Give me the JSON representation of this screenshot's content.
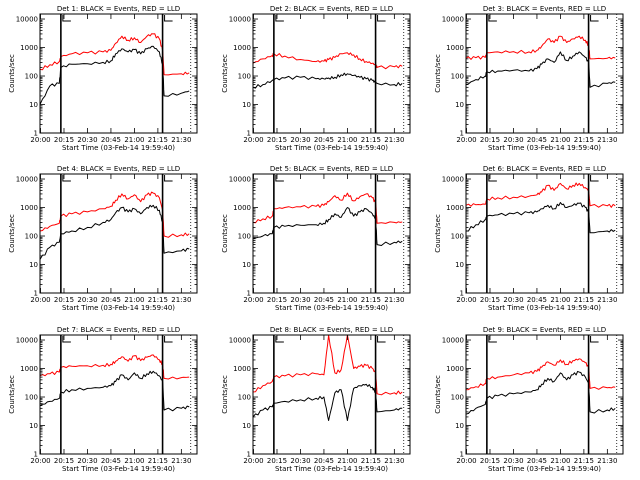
{
  "figure": {
    "x_axis_title": "Start Time (03-Feb-14 19:59:40)",
    "y_axis_title": "Counts/sec",
    "colors": {
      "events": "#000000",
      "lld": "#ff0000"
    },
    "x_tick_labels": [
      "20:00",
      "20:15",
      "20:30",
      "20:45",
      "21:00",
      "21:15",
      "21:30"
    ],
    "y_tick_labels": [
      "1",
      "10",
      "100",
      "1000",
      "10000"
    ]
  },
  "chart_data": [
    {
      "type": "line",
      "title": "Det 1: BLACK = Events, RED = LLD",
      "xlim": [
        "19:59:40",
        "21:40"
      ],
      "ylim": [
        1,
        15000
      ],
      "yscale": "log",
      "x_tick_labels": [
        "20:00",
        "20:15",
        "20:30",
        "20:45",
        "21:00",
        "21:15",
        "21:30"
      ],
      "markers_solid": [
        "20:13",
        "21:18"
      ],
      "markers_dotted": [
        "21:36"
      ],
      "x": [
        "19:59:40",
        "20:06",
        "20:12",
        "20:13",
        "20:20",
        "20:30",
        "20:40",
        "20:45",
        "20:48",
        "20:52",
        "20:56",
        "21:00",
        "21:04",
        "21:08",
        "21:12",
        "21:16",
        "21:18",
        "21:19",
        "21:30",
        "21:35"
      ],
      "series": [
        {
          "name": "BLACK = Events",
          "color": "#000000",
          "values": [
            10,
            45,
            55,
            200,
            260,
            270,
            300,
            340,
            600,
            900,
            700,
            850,
            600,
            900,
            1100,
            700,
            250,
            20,
            25,
            30
          ]
        },
        {
          "name": "RED = LLD",
          "color": "#ff0000",
          "values": [
            170,
            250,
            320,
            480,
            600,
            650,
            700,
            800,
            1400,
            2500,
            1800,
            2200,
            1500,
            2500,
            3000,
            2000,
            800,
            110,
            120,
            130
          ]
        }
      ]
    },
    {
      "type": "line",
      "title": "Det 2: BLACK = Events, RED = LLD",
      "xlim": [
        "19:59:40",
        "21:40"
      ],
      "ylim": [
        1,
        15000
      ],
      "yscale": "log",
      "x_tick_labels": [
        "20:00",
        "20:15",
        "20:30",
        "20:45",
        "21:00",
        "21:15",
        "21:30"
      ],
      "markers_solid": [
        "20:13",
        "21:18"
      ],
      "markers_dotted": [
        "21:36"
      ],
      "x": [
        "19:59:40",
        "20:06",
        "20:12",
        "20:13",
        "20:20",
        "20:30",
        "20:40",
        "20:45",
        "20:48",
        "20:52",
        "20:56",
        "21:00",
        "21:04",
        "21:08",
        "21:12",
        "21:16",
        "21:18",
        "21:19",
        "21:30",
        "21:35"
      ],
      "series": [
        {
          "name": "BLACK = Events",
          "color": "#000000",
          "values": [
            40,
            50,
            70,
            75,
            85,
            90,
            80,
            80,
            85,
            90,
            110,
            120,
            105,
            90,
            80,
            70,
            60,
            55,
            50,
            55
          ]
        },
        {
          "name": "RED = LLD",
          "color": "#ff0000",
          "values": [
            280,
            400,
            520,
            600,
            500,
            380,
            320,
            330,
            380,
            450,
            600,
            650,
            550,
            400,
            320,
            280,
            240,
            200,
            210,
            220
          ]
        }
      ]
    },
    {
      "type": "line",
      "title": "Det 3: BLACK = Events, RED = LLD",
      "xlim": [
        "19:59:40",
        "21:40"
      ],
      "ylim": [
        1,
        15000
      ],
      "yscale": "log",
      "x_tick_labels": [
        "20:00",
        "20:15",
        "20:30",
        "20:45",
        "21:00",
        "21:15",
        "21:30"
      ],
      "markers_solid": [
        "20:13",
        "21:18"
      ],
      "markers_dotted": [
        "21:36"
      ],
      "x": [
        "19:59:40",
        "20:06",
        "20:12",
        "20:13",
        "20:20",
        "20:30",
        "20:40",
        "20:45",
        "20:48",
        "20:52",
        "20:56",
        "21:00",
        "21:04",
        "21:08",
        "21:12",
        "21:16",
        "21:18",
        "21:19",
        "21:30",
        "21:35"
      ],
      "series": [
        {
          "name": "BLACK = Events",
          "color": "#000000",
          "values": [
            50,
            75,
            100,
            140,
            150,
            160,
            150,
            180,
            260,
            400,
            300,
            700,
            350,
            500,
            700,
            450,
            300,
            40,
            55,
            60
          ]
        },
        {
          "name": "RED = LLD",
          "color": "#ff0000",
          "values": [
            420,
            440,
            450,
            650,
            700,
            720,
            700,
            800,
            1100,
            2000,
            1500,
            2500,
            1500,
            2000,
            2500,
            1800,
            1200,
            400,
            420,
            430
          ]
        }
      ]
    },
    {
      "type": "line",
      "title": "Det 4: BLACK = Events, RED = LLD",
      "xlim": [
        "19:59:40",
        "21:40"
      ],
      "ylim": [
        1,
        15000
      ],
      "yscale": "log",
      "x_tick_labels": [
        "20:00",
        "20:15",
        "20:30",
        "20:45",
        "21:00",
        "21:15",
        "21:30"
      ],
      "markers_solid": [
        "20:13",
        "21:18"
      ],
      "markers_dotted": [
        "21:36"
      ],
      "x": [
        "19:59:40",
        "20:06",
        "20:12",
        "20:13",
        "20:20",
        "20:30",
        "20:40",
        "20:45",
        "20:48",
        "20:52",
        "20:56",
        "21:00",
        "21:04",
        "21:08",
        "21:12",
        "21:16",
        "21:18",
        "21:19",
        "21:30",
        "21:35"
      ],
      "series": [
        {
          "name": "BLACK = Events",
          "color": "#000000",
          "values": [
            15,
            40,
            60,
            120,
            150,
            200,
            300,
            380,
            650,
            1000,
            700,
            900,
            600,
            1000,
            1200,
            800,
            300,
            25,
            30,
            35
          ]
        },
        {
          "name": "RED = LLD",
          "color": "#ff0000",
          "values": [
            150,
            220,
            280,
            500,
            600,
            700,
            900,
            1100,
            1800,
            3000,
            2000,
            2800,
            1600,
            2800,
            3200,
            2200,
            800,
            100,
            110,
            120
          ]
        }
      ]
    },
    {
      "type": "line",
      "title": "Det 5: BLACK = Events, RED = LLD",
      "xlim": [
        "19:59:40",
        "21:40"
      ],
      "ylim": [
        1,
        15000
      ],
      "yscale": "log",
      "x_tick_labels": [
        "20:00",
        "20:15",
        "20:30",
        "20:45",
        "21:00",
        "21:15",
        "21:30"
      ],
      "markers_solid": [
        "20:13",
        "21:18"
      ],
      "markers_dotted": [
        "21:36"
      ],
      "x": [
        "19:59:40",
        "20:06",
        "20:12",
        "20:13",
        "20:20",
        "20:30",
        "20:40",
        "20:45",
        "20:48",
        "20:52",
        "20:56",
        "21:00",
        "21:04",
        "21:08",
        "21:12",
        "21:16",
        "21:18",
        "21:19",
        "21:30",
        "21:35"
      ],
      "series": [
        {
          "name": "BLACK = Events",
          "color": "#000000",
          "values": [
            80,
            100,
            120,
            200,
            220,
            240,
            250,
            280,
            380,
            600,
            450,
            1000,
            500,
            700,
            900,
            600,
            400,
            50,
            60,
            65
          ]
        },
        {
          "name": "RED = LLD",
          "color": "#ff0000",
          "values": [
            300,
            400,
            500,
            900,
            1000,
            1050,
            1100,
            1200,
            1600,
            2600,
            1800,
            3200,
            1700,
            2400,
            3000,
            2200,
            1500,
            280,
            300,
            310
          ]
        }
      ]
    },
    {
      "type": "line",
      "title": "Det 6: BLACK = Events, RED = LLD",
      "xlim": [
        "19:59:40",
        "21:40"
      ],
      "ylim": [
        1,
        15000
      ],
      "yscale": "log",
      "x_tick_labels": [
        "20:00",
        "20:15",
        "20:30",
        "20:45",
        "21:00",
        "21:15",
        "21:30"
      ],
      "markers_solid": [
        "20:13",
        "21:18"
      ],
      "markers_dotted": [
        "21:36"
      ],
      "x": [
        "19:59:40",
        "20:06",
        "20:12",
        "20:13",
        "20:20",
        "20:30",
        "20:40",
        "20:45",
        "20:48",
        "20:52",
        "20:56",
        "21:00",
        "21:04",
        "21:08",
        "21:12",
        "21:16",
        "21:18",
        "21:19",
        "21:30",
        "21:35"
      ],
      "series": [
        {
          "name": "BLACK = Events",
          "color": "#000000",
          "values": [
            150,
            250,
            380,
            500,
            550,
            600,
            650,
            700,
            900,
            1200,
            900,
            1500,
            1000,
            1200,
            1400,
            1000,
            700,
            130,
            150,
            160
          ]
        },
        {
          "name": "RED = LLD",
          "color": "#ff0000",
          "values": [
            1200,
            1250,
            1300,
            2000,
            2200,
            2300,
            2500,
            2800,
            3500,
            6000,
            4000,
            7000,
            4500,
            6000,
            7000,
            5000,
            4000,
            1150,
            1150,
            1150
          ]
        }
      ]
    },
    {
      "type": "line",
      "title": "Det 7: BLACK = Events, RED = LLD",
      "xlim": [
        "19:59:40",
        "21:40"
      ],
      "ylim": [
        1,
        15000
      ],
      "yscale": "log",
      "x_tick_labels": [
        "20:00",
        "20:15",
        "20:30",
        "20:45",
        "21:00",
        "21:15",
        "21:30"
      ],
      "markers_solid": [
        "20:13",
        "21:18"
      ],
      "markers_dotted": [
        "21:36"
      ],
      "x": [
        "19:59:40",
        "20:06",
        "20:12",
        "20:13",
        "20:20",
        "20:30",
        "20:40",
        "20:45",
        "20:48",
        "20:52",
        "20:56",
        "21:00",
        "21:04",
        "21:08",
        "21:12",
        "21:16",
        "21:18",
        "21:19",
        "21:30",
        "21:35"
      ],
      "series": [
        {
          "name": "BLACK = Events",
          "color": "#000000",
          "values": [
            50,
            70,
            90,
            150,
            180,
            200,
            220,
            250,
            350,
            600,
            400,
            700,
            450,
            650,
            800,
            550,
            350,
            35,
            40,
            45
          ]
        },
        {
          "name": "RED = LLD",
          "color": "#ff0000",
          "values": [
            550,
            650,
            750,
            1100,
            1200,
            1250,
            1300,
            1400,
            1800,
            2600,
            1800,
            2800,
            1900,
            2500,
            3000,
            2000,
            1400,
            450,
            480,
            500
          ]
        }
      ]
    },
    {
      "type": "line",
      "title": "Det 8: BLACK = Events, RED = LLD",
      "xlim": [
        "19:59:40",
        "21:40"
      ],
      "ylim": [
        1,
        15000
      ],
      "yscale": "log",
      "x_tick_labels": [
        "20:00",
        "20:15",
        "20:30",
        "20:45",
        "21:00",
        "21:15",
        "21:30"
      ],
      "markers_solid": [
        "20:13",
        "21:18"
      ],
      "markers_dotted": [
        "21:36"
      ],
      "x": [
        "19:59:40",
        "20:06",
        "20:12",
        "20:13",
        "20:20",
        "20:30",
        "20:40",
        "20:45",
        "20:48",
        "20:52",
        "20:56",
        "21:00",
        "21:04",
        "21:08",
        "21:12",
        "21:16",
        "21:18",
        "21:19",
        "21:30",
        "21:35"
      ],
      "series": [
        {
          "name": "BLACK = Events",
          "color": "#000000",
          "values": [
            20,
            35,
            45,
            60,
            70,
            80,
            90,
            100,
            15,
            140,
            180,
            15,
            200,
            250,
            280,
            220,
            150,
            30,
            35,
            40
          ]
        },
        {
          "name": "RED = LLD",
          "color": "#ff0000",
          "values": [
            150,
            250,
            350,
            500,
            550,
            600,
            650,
            600,
            15000,
            700,
            900,
            15000,
            1000,
            1200,
            1300,
            1000,
            700,
            130,
            140,
            150
          ]
        }
      ]
    },
    {
      "type": "line",
      "title": "Det 9: BLACK = Events, RED = LLD",
      "xlim": [
        "19:59:40",
        "21:40"
      ],
      "ylim": [
        1,
        15000
      ],
      "yscale": "log",
      "x_tick_labels": [
        "20:00",
        "20:15",
        "20:30",
        "20:45",
        "21:00",
        "21:15",
        "21:30"
      ],
      "markers_solid": [
        "20:13",
        "21:18"
      ],
      "markers_dotted": [
        "21:36"
      ],
      "x": [
        "19:59:40",
        "20:06",
        "20:12",
        "20:13",
        "20:20",
        "20:30",
        "20:40",
        "20:45",
        "20:48",
        "20:52",
        "20:56",
        "21:00",
        "21:04",
        "21:08",
        "21:12",
        "21:16",
        "21:18",
        "21:19",
        "21:30",
        "21:35"
      ],
      "series": [
        {
          "name": "BLACK = Events",
          "color": "#000000",
          "values": [
            25,
            40,
            55,
            90,
            110,
            130,
            150,
            180,
            280,
            450,
            350,
            700,
            400,
            600,
            750,
            500,
            300,
            30,
            35,
            40
          ]
        },
        {
          "name": "RED = LLD",
          "color": "#ff0000",
          "values": [
            180,
            230,
            300,
            450,
            500,
            600,
            700,
            800,
            1100,
            1700,
            1300,
            2000,
            1400,
            1900,
            2200,
            1600,
            1100,
            200,
            210,
            220
          ]
        }
      ]
    }
  ]
}
